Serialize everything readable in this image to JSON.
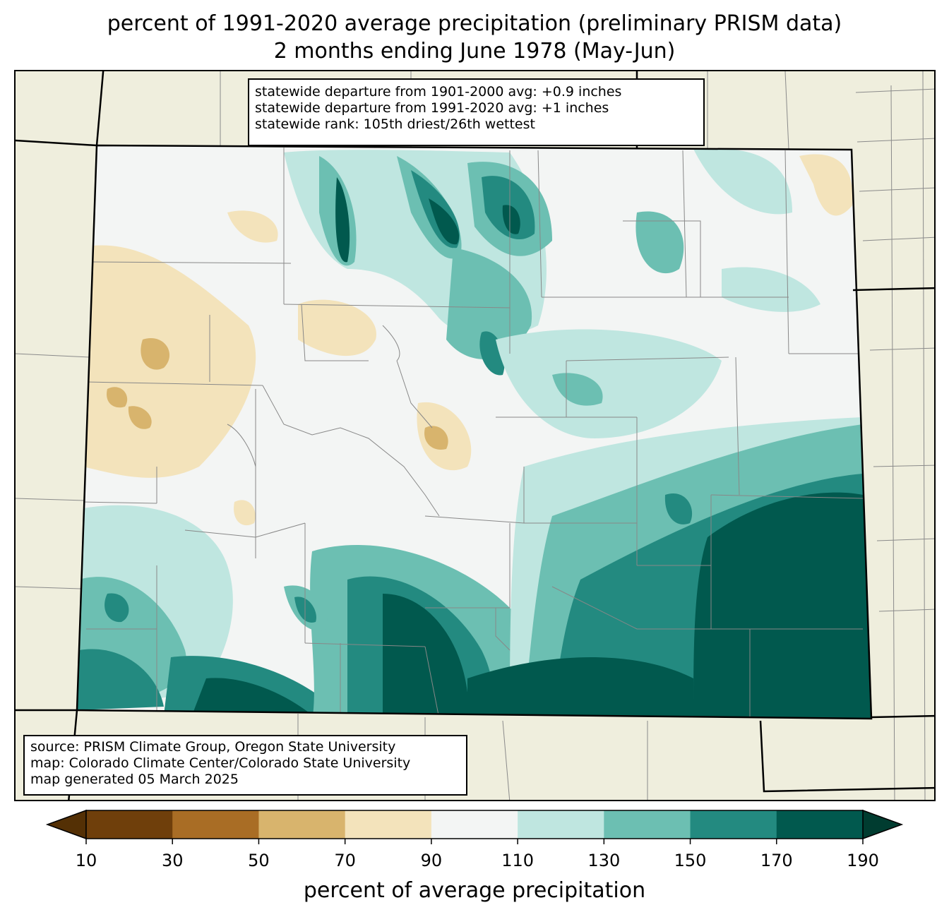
{
  "title": {
    "line1": "percent of 1991-2020 average precipitation (preliminary PRISM data)",
    "line2": "2 months ending June 1978 (May-Jun)"
  },
  "stats": {
    "line1": "statewide departure from 1901-2000 avg: +0.9 inches",
    "line2": "statewide departure from 1991-2020 avg: +1 inches",
    "line3": "statewide rank: 105th driest/26th wettest"
  },
  "source": {
    "line1": "source: PRISM Climate Group, Oregon State University",
    "line2": "map: Colorado Climate Center/Colorado State University",
    "line3": "map generated 05 March 2025"
  },
  "colorbar": {
    "label": "percent of average precipitation",
    "ticks": [
      "10",
      "30",
      "50",
      "70",
      "90",
      "110",
      "130",
      "150",
      "170",
      "190"
    ],
    "under_color": "#543005",
    "over_color": "#003c30",
    "colors": [
      "#6f3f0b",
      "#a96d25",
      "#d8b46d",
      "#f3e3bb",
      "#f3f5f4",
      "#bfe6e0",
      "#6cbfb2",
      "#238a80",
      "#01594e"
    ]
  },
  "colors": {
    "background": "#efeedd",
    "state_border": "#000000",
    "county_border": "#888888"
  }
}
